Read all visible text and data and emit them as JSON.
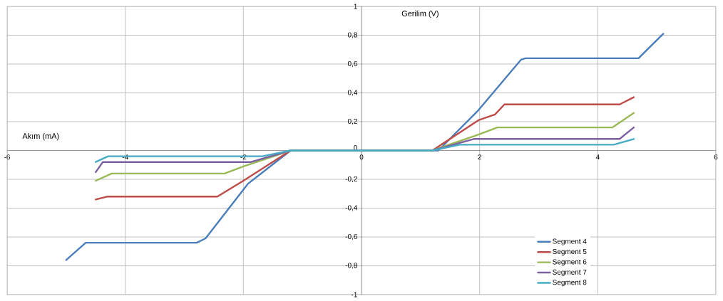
{
  "chart_data": {
    "type": "line",
    "xlabel": "Akım (mA)",
    "ylabel": "Gerilim (V)",
    "xlim": [
      -6,
      6
    ],
    "ylim": [
      -1,
      1
    ],
    "xticks": [
      -6,
      -4,
      -2,
      0,
      2,
      4,
      6
    ],
    "yticks": [
      {
        "value": -1,
        "label": "-1"
      },
      {
        "value": -0.8,
        "label": "-0,8"
      },
      {
        "value": -0.6,
        "label": "-0,6"
      },
      {
        "value": -0.4,
        "label": "-0,4"
      },
      {
        "value": -0.2,
        "label": "-0,2"
      },
      {
        "value": 0,
        "label": "0"
      },
      {
        "value": 0.2,
        "label": "0,2"
      },
      {
        "value": 0.4,
        "label": "0,4"
      },
      {
        "value": 0.6,
        "label": "0,6"
      },
      {
        "value": 0.8,
        "label": "0,8"
      },
      {
        "value": 1,
        "label": "1"
      }
    ],
    "grid": true,
    "legend": "bottom right",
    "marker": "none",
    "line_style": "solid",
    "series": [
      {
        "name": "Segment 4",
        "color": "#4a7ebb",
        "x": [
          -5.0,
          -4.67,
          -2.79,
          -2.64,
          -1.92,
          -1.2,
          1.3,
          1.98,
          2.7,
          2.78,
          4.69,
          5.11
        ],
        "values": [
          -0.76,
          -0.64,
          -0.64,
          -0.61,
          -0.23,
          0,
          0,
          0.28,
          0.63,
          0.64,
          0.64,
          0.81
        ]
      },
      {
        "name": "Segment 5",
        "color": "#be4b48",
        "x": [
          -4.5,
          -4.31,
          -2.44,
          -2.0,
          -1.2,
          1.2,
          1.98,
          2.26,
          2.42,
          4.37,
          4.61
        ],
        "values": [
          -0.34,
          -0.32,
          -0.32,
          -0.21,
          0,
          0,
          0.21,
          0.25,
          0.32,
          0.32,
          0.37
        ]
      },
      {
        "name": "Segment 6",
        "color": "#98b954",
        "x": [
          -4.5,
          -4.23,
          -2.32,
          -2.0,
          -1.2,
          1.2,
          1.98,
          2.3,
          4.25,
          4.61
        ],
        "values": [
          -0.21,
          -0.16,
          -0.16,
          -0.11,
          0,
          0,
          0.11,
          0.16,
          0.16,
          0.26
        ]
      },
      {
        "name": "Segment 7",
        "color": "#7d60a0",
        "x": [
          -4.5,
          -4.38,
          -1.87,
          -1.2,
          1.2,
          1.9,
          4.37,
          4.61
        ],
        "values": [
          -0.15,
          -0.08,
          -0.08,
          0,
          0,
          0.08,
          0.08,
          0.16
        ]
      },
      {
        "name": "Segment 8",
        "color": "#46aac5",
        "x": [
          -4.5,
          -4.29,
          -1.68,
          -1.2,
          1.2,
          1.66,
          4.27,
          4.61
        ],
        "values": [
          -0.08,
          -0.04,
          -0.04,
          0,
          0,
          0.04,
          0.04,
          0.08
        ]
      }
    ]
  }
}
